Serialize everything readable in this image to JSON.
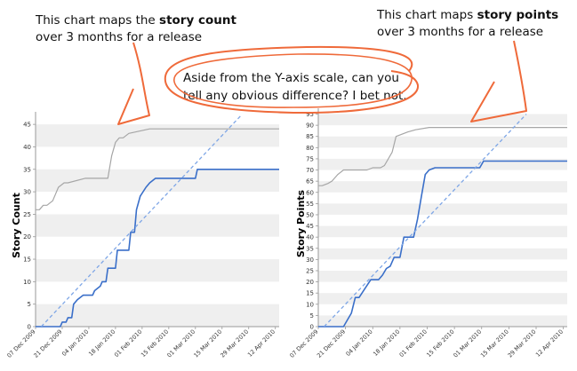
{
  "annotations": {
    "left_line1_pre": "This chart maps the ",
    "left_line1_bold": "story count",
    "left_line2": "over 3 months for a release",
    "right_line1_pre": "This chart maps ",
    "right_line1_bold": "story points",
    "right_line2": "over 3 months for a release",
    "bubble_line1": "Aside from the Y-axis scale, can you",
    "bubble_line2": "tell any obvious difference? I bet not."
  },
  "colors": {
    "scope_line": "#a6a6a6",
    "completed_line": "#3a6fc9",
    "ideal_line": "#7ea6e6",
    "band": "#efefef",
    "annotation_ink": "#ef6a3a"
  },
  "chart_data": [
    {
      "type": "line",
      "ylabel": "Story Count",
      "xlabel": "",
      "ylim": [
        0,
        47
      ],
      "yticks": [
        0,
        5,
        10,
        15,
        20,
        25,
        30,
        35,
        40,
        45
      ],
      "xlim": [
        "2009-12-07",
        "2010-04-14"
      ],
      "xticks": [
        "07 Dec 2009",
        "21 Dec 2009",
        "04 Jan 2010",
        "18 Jan 2010",
        "01 Feb 2010",
        "15 Feb 2010",
        "01 Mar 2010",
        "15 Mar 2010",
        "29 Mar 2010",
        "12 Apr 2010"
      ],
      "grid": "alternating horizontal bands",
      "series": [
        {
          "role": "scope",
          "color": "#a6a6a6",
          "x": [
            "2009-12-07",
            "2009-12-09",
            "2009-12-11",
            "2009-12-13",
            "2009-12-16",
            "2009-12-19",
            "2009-12-22",
            "2009-12-24",
            "2010-01-02",
            "2010-01-04",
            "2010-01-08",
            "2010-01-14",
            "2010-01-16",
            "2010-01-18",
            "2010-01-20",
            "2010-01-22",
            "2010-01-25",
            "2010-02-05",
            "2010-02-20",
            "2010-03-10",
            "2010-04-14"
          ],
          "y": [
            26,
            26,
            27,
            27,
            28,
            31,
            32,
            32,
            33,
            33,
            33,
            33,
            38,
            41,
            42,
            42,
            43,
            44,
            44,
            44,
            44
          ]
        },
        {
          "role": "completed",
          "color": "#3a6fc9",
          "x": [
            "2009-12-07",
            "2009-12-20",
            "2009-12-21",
            "2009-12-23",
            "2009-12-24",
            "2009-12-26",
            "2009-12-27",
            "2009-12-29",
            "2010-01-01",
            "2010-01-06",
            "2010-01-07",
            "2010-01-10",
            "2010-01-11",
            "2010-01-13",
            "2010-01-14",
            "2010-01-18",
            "2010-01-19",
            "2010-01-25",
            "2010-01-26",
            "2010-01-28",
            "2010-01-29",
            "2010-01-31",
            "2010-02-03",
            "2010-02-05",
            "2010-02-08",
            "2010-03-01",
            "2010-03-02",
            "2010-04-14"
          ],
          "y": [
            0,
            0,
            1,
            1,
            2,
            2,
            5,
            6,
            7,
            7,
            8,
            9,
            10,
            10,
            13,
            13,
            17,
            17,
            21,
            21,
            26,
            29,
            31,
            32,
            33,
            33,
            35,
            35
          ]
        },
        {
          "role": "ideal",
          "color": "#7ea6e6",
          "style": "dashed",
          "x": [
            "2009-12-10",
            "2010-03-25"
          ],
          "y": [
            0,
            47
          ]
        }
      ]
    },
    {
      "type": "line",
      "ylabel": "Story Points",
      "xlabel": "",
      "ylim": [
        0,
        96
      ],
      "yticks": [
        0,
        5,
        10,
        15,
        20,
        25,
        30,
        35,
        40,
        45,
        50,
        55,
        60,
        65,
        70,
        75,
        80,
        85,
        90,
        95
      ],
      "xlim": [
        "2009-12-07",
        "2010-04-14"
      ],
      "xticks": [
        "07 Dec 2009",
        "21 Dec 2009",
        "04 Jan 2010",
        "18 Jan 2010",
        "01 Feb 2010",
        "15 Feb 2010",
        "01 Mar 2010",
        "15 Mar 2010",
        "29 Mar 2010",
        "12 Apr 2010"
      ],
      "grid": "alternating horizontal bands",
      "series": [
        {
          "role": "scope",
          "color": "#a6a6a6",
          "x": [
            "2009-12-07",
            "2009-12-09",
            "2009-12-12",
            "2009-12-14",
            "2009-12-17",
            "2009-12-20",
            "2010-01-01",
            "2010-01-04",
            "2010-01-08",
            "2010-01-10",
            "2010-01-14",
            "2010-01-16",
            "2010-01-19",
            "2010-01-22",
            "2010-01-26",
            "2010-02-02",
            "2010-04-14"
          ],
          "y": [
            63,
            63,
            64,
            65,
            68,
            70,
            70,
            71,
            71,
            72,
            78,
            85,
            86,
            87,
            88,
            89,
            89
          ]
        },
        {
          "role": "completed",
          "color": "#3a6fc9",
          "x": [
            "2009-12-07",
            "2009-12-20",
            "2009-12-22",
            "2009-12-24",
            "2009-12-26",
            "2009-12-28",
            "2009-12-31",
            "2010-01-03",
            "2010-01-07",
            "2010-01-09",
            "2010-01-11",
            "2010-01-13",
            "2010-01-15",
            "2010-01-18",
            "2010-01-20",
            "2010-01-22",
            "2010-01-25",
            "2010-01-27",
            "2010-01-29",
            "2010-01-31",
            "2010-02-02",
            "2010-02-05",
            "2010-02-28",
            "2010-03-02",
            "2010-04-14"
          ],
          "y": [
            0,
            0,
            3,
            6,
            13,
            13,
            17,
            21,
            21,
            23,
            26,
            27,
            31,
            31,
            40,
            40,
            40,
            48,
            58,
            68,
            70,
            71,
            71,
            74,
            74
          ]
        },
        {
          "role": "ideal",
          "color": "#7ea6e6",
          "style": "dashed",
          "x": [
            "2009-12-10",
            "2010-03-24"
          ],
          "y": [
            0,
            95
          ]
        }
      ]
    }
  ]
}
